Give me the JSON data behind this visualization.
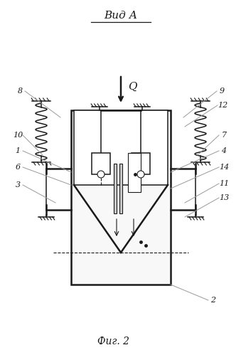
{
  "title": "Вид А",
  "fig_label": "Фиг. 2",
  "arrow_label": "Q",
  "bg_color": "#ffffff",
  "lc": "#1a1a1a",
  "lgc": "#999999"
}
